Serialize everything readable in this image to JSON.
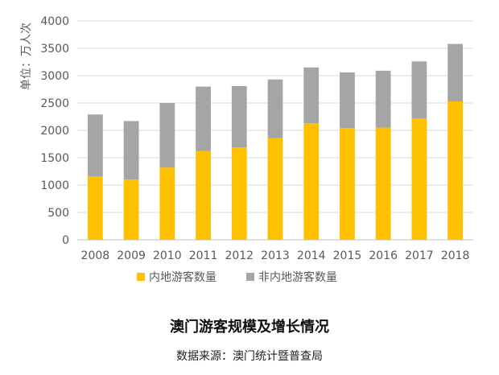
{
  "chart_data": {
    "type": "bar",
    "stacked": true,
    "title": "澳门游客规模及增长情况",
    "source": "数据来源：澳门统计暨普查局",
    "ylabel": "单位：万人次",
    "ylim": [
      0,
      4000
    ],
    "yticks": [
      0,
      500,
      1000,
      1500,
      2000,
      2500,
      3000,
      3500,
      4000
    ],
    "grid": true,
    "legend_position": "bottom",
    "categories": [
      "2008",
      "2009",
      "2010",
      "2011",
      "2012",
      "2013",
      "2014",
      "2015",
      "2016",
      "2017",
      "2018"
    ],
    "series": [
      {
        "name": "内地游客数量",
        "color": "#FFC000",
        "values": [
          1160,
          1100,
          1320,
          1620,
          1690,
          1860,
          2130,
          2040,
          2050,
          2220,
          2530
        ]
      },
      {
        "name": "非内地游客数量",
        "color": "#A5A5A5",
        "values": [
          1130,
          1070,
          1180,
          1180,
          1120,
          1070,
          1020,
          1020,
          1040,
          1040,
          1050
        ]
      }
    ]
  }
}
